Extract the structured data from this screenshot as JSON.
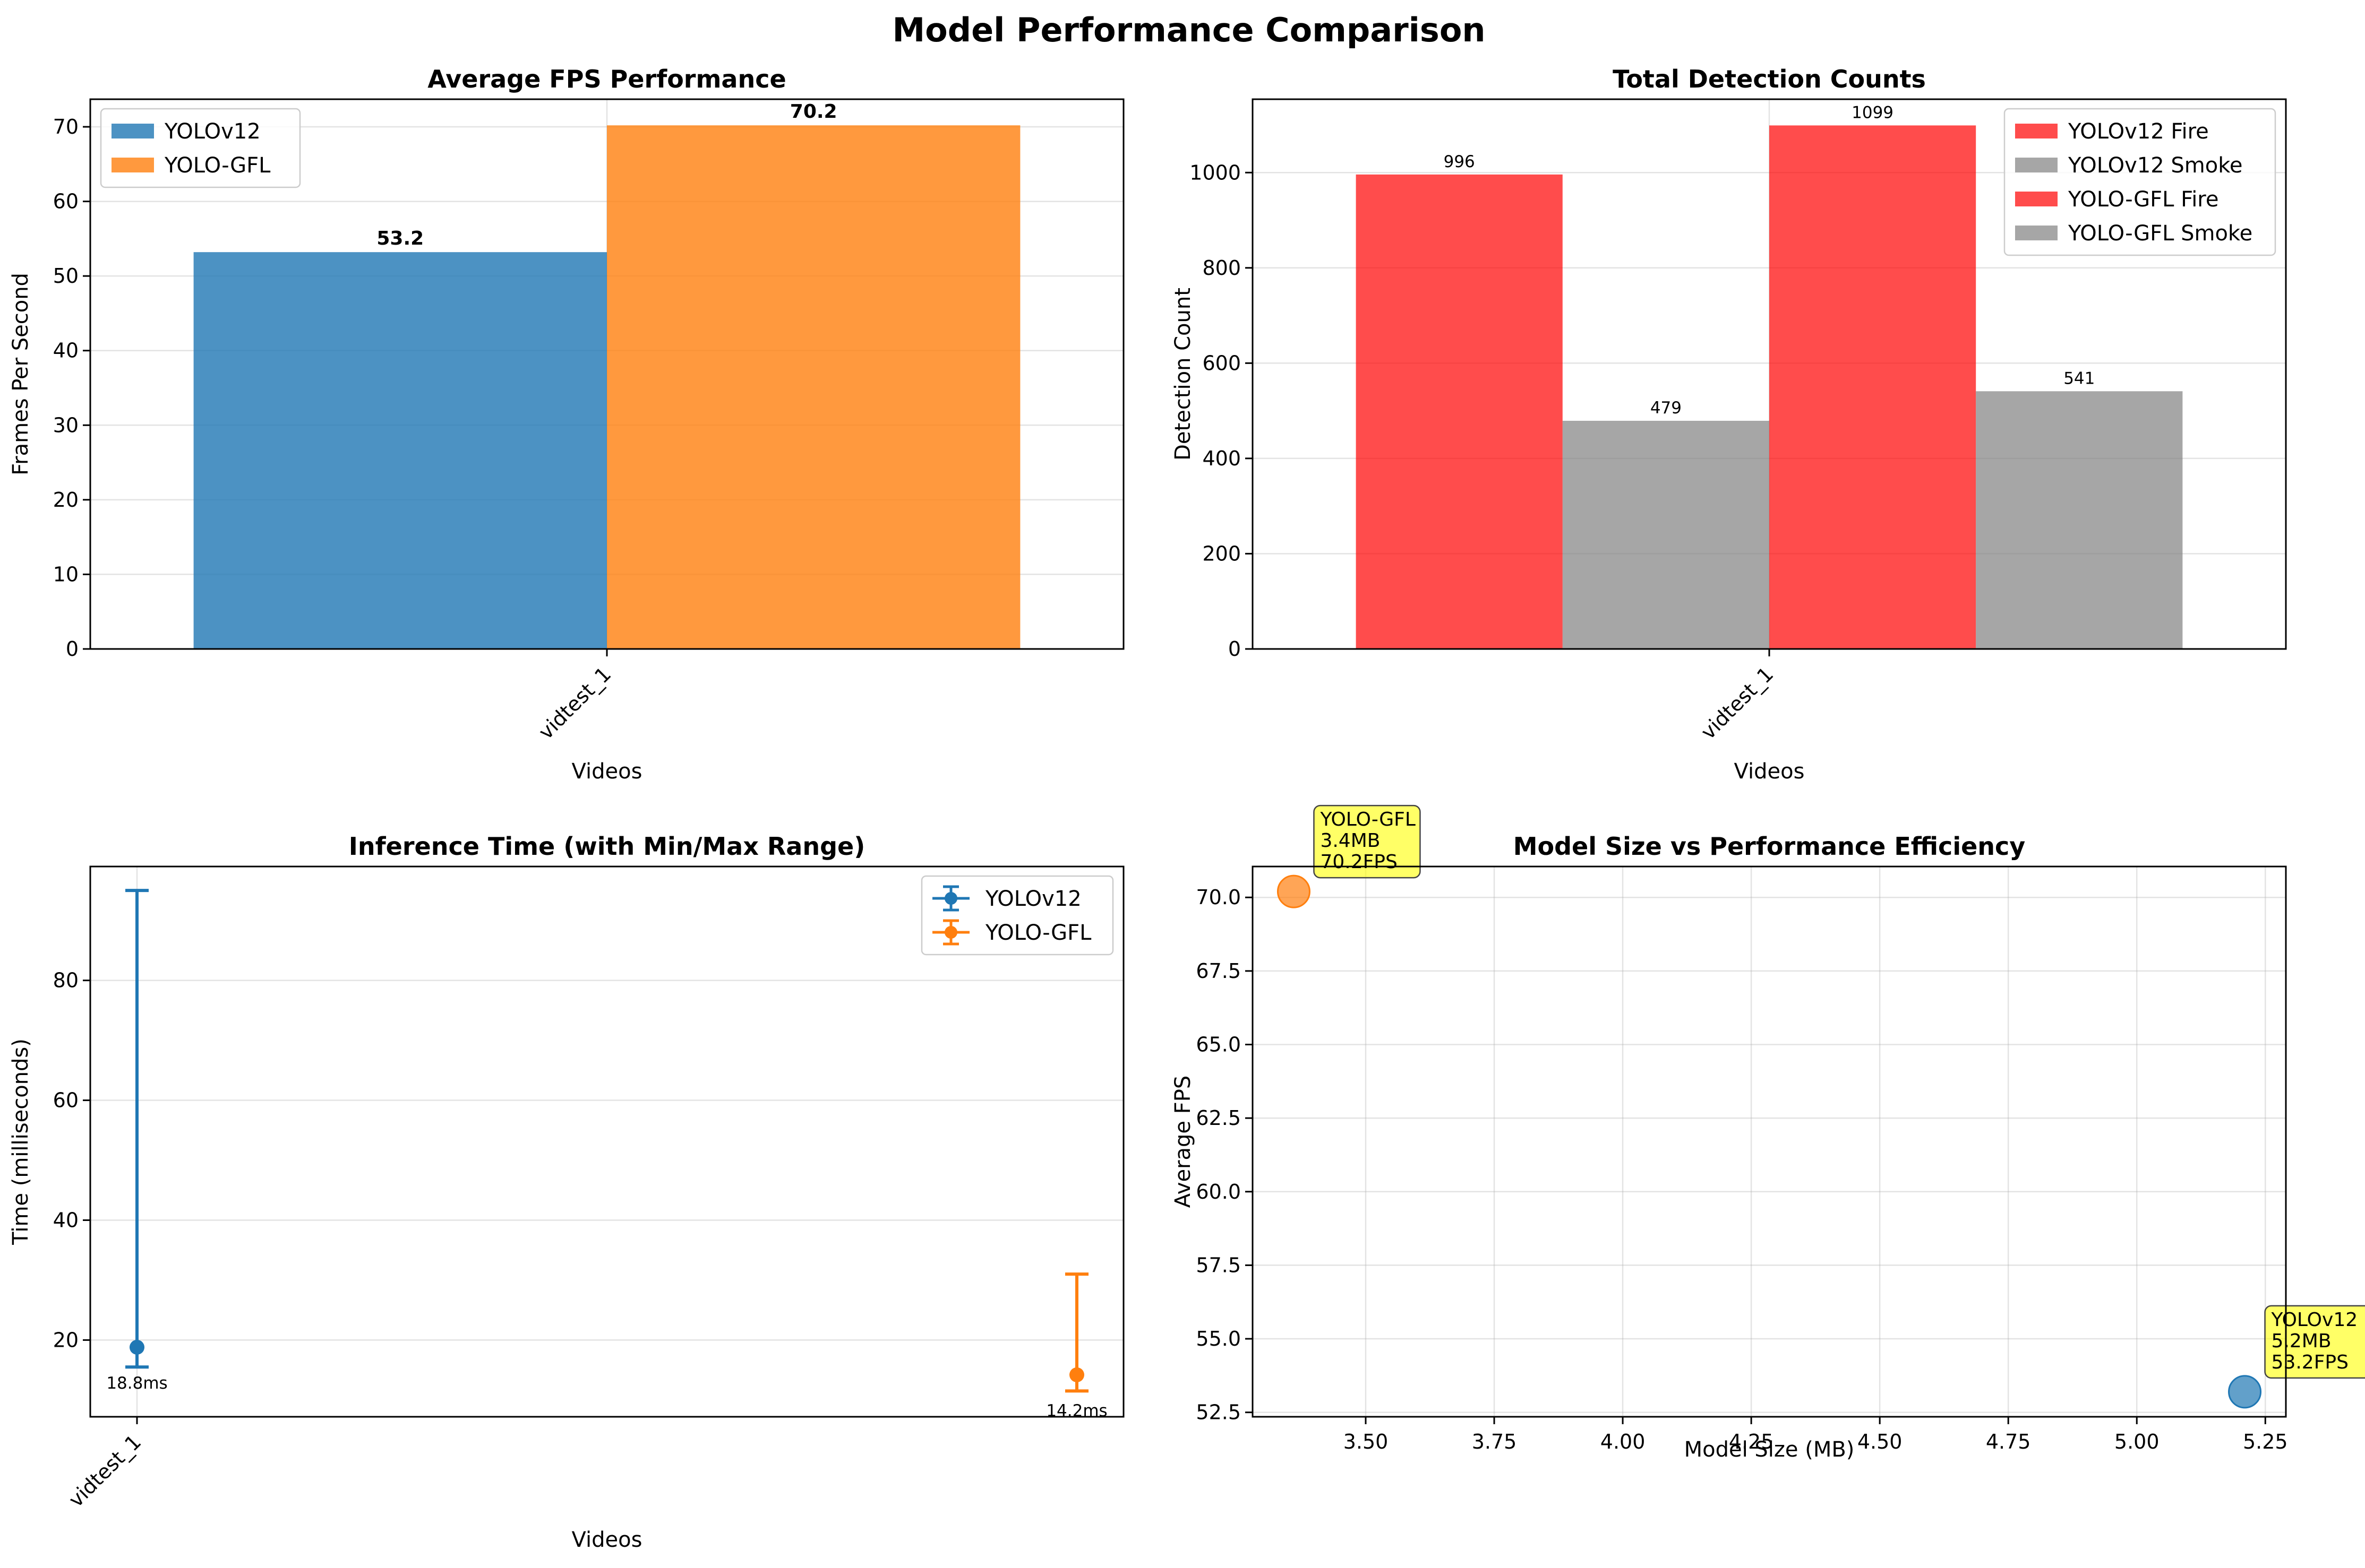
{
  "figure": {
    "title": "Model Performance Comparison"
  },
  "chart_data": [
    {
      "type": "bar",
      "title": "Average FPS Performance",
      "xlabel": "Videos",
      "ylabel": "Frames Per Second",
      "categories": [
        "vidtest_1"
      ],
      "ylim": [
        0,
        73.7
      ],
      "yticks": [
        0,
        10,
        20,
        30,
        40,
        50,
        60,
        70
      ],
      "grid": true,
      "legend_position": "top-left",
      "series": [
        {
          "name": "YOLOv12",
          "values": [
            53.2
          ],
          "color": "#1f77b4",
          "labels": [
            "53.2"
          ]
        },
        {
          "name": "YOLO-GFL",
          "values": [
            70.2
          ],
          "color": "#ff7f0e",
          "labels": [
            "70.2"
          ]
        }
      ]
    },
    {
      "type": "bar",
      "title": "Total Detection Counts",
      "xlabel": "Videos",
      "ylabel": "Detection Count",
      "categories": [
        "vidtest_1"
      ],
      "ylim": [
        0,
        1154
      ],
      "yticks": [
        0,
        200,
        400,
        600,
        800,
        1000
      ],
      "grid": true,
      "legend_position": "top-right",
      "series": [
        {
          "name": "YOLOv12 Fire",
          "values": [
            996
          ],
          "color": "#ff0000",
          "labels": [
            "996"
          ]
        },
        {
          "name": "YOLOv12 Smoke",
          "values": [
            479
          ],
          "color": "#808080",
          "labels": [
            "479"
          ]
        },
        {
          "name": "YOLO-GFL Fire",
          "values": [
            1099
          ],
          "color": "#ff0000",
          "labels": [
            "1099"
          ]
        },
        {
          "name": "YOLO-GFL Smoke",
          "values": [
            541
          ],
          "color": "#808080",
          "labels": [
            "541"
          ]
        }
      ]
    },
    {
      "type": "errorbar",
      "title": "Inference Time (with Min/Max Range)",
      "xlabel": "Videos",
      "ylabel": "Time (milliseconds)",
      "categories": [
        "vidtest_1"
      ],
      "ylim": [
        7.2,
        99.0
      ],
      "yticks": [
        20,
        40,
        60,
        80
      ],
      "grid": true,
      "legend_position": "top-right",
      "series": [
        {
          "name": "YOLOv12",
          "x": [
            0
          ],
          "mean": [
            18.8
          ],
          "min": [
            15.5
          ],
          "max": [
            95.0
          ],
          "color": "#1f77b4",
          "labels": [
            "18.8ms"
          ]
        },
        {
          "name": "YOLO-GFL",
          "x": [
            1
          ],
          "mean": [
            14.2
          ],
          "min": [
            11.5
          ],
          "max": [
            31.0
          ],
          "color": "#ff7f0e",
          "labels": [
            "14.2ms"
          ]
        }
      ]
    },
    {
      "type": "scatter",
      "title": "Model Size vs Performance Efficiency",
      "xlabel": "Model Size (MB)",
      "ylabel": "Average FPS",
      "xlim": [
        3.28,
        5.29
      ],
      "ylim": [
        52.35,
        71.05
      ],
      "xticks": [
        3.5,
        3.75,
        4.0,
        4.25,
        4.5,
        4.75,
        5.0,
        5.25
      ],
      "xtick_labels": [
        "3.50",
        "3.75",
        "4.00",
        "4.25",
        "4.50",
        "4.75",
        "5.00",
        "5.25"
      ],
      "yticks": [
        52.5,
        55.0,
        57.5,
        60.0,
        62.5,
        65.0,
        67.5,
        70.0
      ],
      "ytick_labels": [
        "52.5",
        "55.0",
        "57.5",
        "60.0",
        "62.5",
        "65.0",
        "67.5",
        "70.0"
      ],
      "grid": true,
      "points": [
        {
          "name": "YOLO-GFL",
          "x": 3.36,
          "y": 70.2,
          "color": "#ff7f0e",
          "annotation": [
            "YOLO-GFL",
            "3.4MB",
            "70.2FPS"
          ]
        },
        {
          "name": "YOLOv12",
          "x": 5.21,
          "y": 53.2,
          "color": "#1f77b4",
          "annotation": [
            "YOLOv12",
            "5.2MB",
            "53.2FPS"
          ]
        }
      ]
    }
  ]
}
